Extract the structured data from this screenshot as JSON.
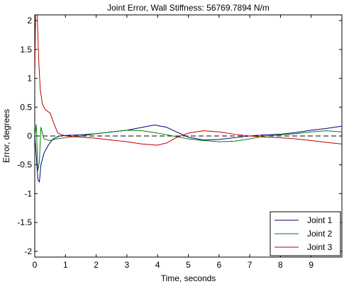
{
  "chart_data": {
    "type": "line",
    "title": "Joint Error, Wall Stiffness: 56769.7894 N/m",
    "xlabel": "Time, seconds",
    "ylabel": "Error, degrees",
    "xlim": [
      0,
      10
    ],
    "ylim": [
      -2.1,
      2.1
    ],
    "xticks": [
      0,
      1,
      2,
      3,
      4,
      5,
      6,
      7,
      8,
      9
    ],
    "xtick_labels": [
      "0",
      "1",
      "2",
      "3",
      "4",
      "5",
      "6",
      "7",
      "8",
      "9"
    ],
    "yticks": [
      2,
      1.5,
      1,
      0.5,
      0,
      -0.5,
      -1,
      -1.5,
      -2
    ],
    "ytick_labels": [
      "2",
      "1.5",
      "1",
      "0.5",
      "0",
      "-0.5",
      "-1",
      "-1.5",
      "-2"
    ],
    "grid": false,
    "legend_position": "bottom-right",
    "reference_line": {
      "y": 0,
      "style": "dashed",
      "color": "#000000"
    },
    "series": [
      {
        "name": "Joint 1",
        "color": "#00007f",
        "x": [
          0,
          0.05,
          0.1,
          0.15,
          0.2,
          0.3,
          0.45,
          0.6,
          0.8,
          1,
          1.5,
          2,
          2.5,
          3,
          3.5,
          3.9,
          4.3,
          4.7,
          5,
          5.5,
          6,
          6.5,
          7,
          7.5,
          8,
          8.5,
          9,
          9.5,
          10
        ],
        "y": [
          0,
          -0.35,
          -0.75,
          -0.8,
          -0.5,
          -0.3,
          -0.15,
          -0.05,
          0,
          0.01,
          0.02,
          0.04,
          0.07,
          0.1,
          0.15,
          0.19,
          0.15,
          0.05,
          -0.02,
          -0.07,
          -0.06,
          -0.03,
          0.0,
          0.02,
          0.03,
          0.06,
          0.1,
          0.13,
          0.17
        ]
      },
      {
        "name": "Joint 2",
        "color": "#007f00",
        "x": [
          0,
          0.05,
          0.1,
          0.15,
          0.2,
          0.3,
          0.5,
          0.7,
          1,
          1.5,
          2,
          2.5,
          3,
          3.5,
          4,
          4.5,
          5,
          5.5,
          6,
          6.5,
          7,
          7.5,
          8,
          8.5,
          9,
          9.5,
          10
        ],
        "y": [
          0,
          0.2,
          -0.6,
          -0.45,
          0.15,
          -0.05,
          -0.08,
          -0.05,
          -0.03,
          0.0,
          0.04,
          0.07,
          0.1,
          0.09,
          0.05,
          0.0,
          -0.05,
          -0.08,
          -0.1,
          -0.09,
          -0.05,
          0.0,
          0.02,
          0.04,
          0.07,
          0.09,
          0.07
        ]
      },
      {
        "name": "Joint 3",
        "color": "#bf0000",
        "x": [
          0,
          0.03,
          0.07,
          0.1,
          0.13,
          0.18,
          0.25,
          0.35,
          0.5,
          0.6,
          0.75,
          1,
          1.5,
          2,
          2.5,
          3,
          3.5,
          4,
          4.3,
          4.6,
          5,
          5.5,
          6,
          6.5,
          7,
          7.5,
          8,
          8.5,
          9,
          9.5,
          10
        ],
        "y": [
          1.0,
          2.2,
          2.3,
          1.8,
          1.3,
          0.8,
          0.55,
          0.45,
          0.4,
          0.25,
          0.05,
          0.0,
          -0.02,
          -0.04,
          -0.07,
          -0.1,
          -0.14,
          -0.16,
          -0.12,
          -0.03,
          0.05,
          0.09,
          0.07,
          0.03,
          0.0,
          -0.02,
          -0.03,
          -0.05,
          -0.08,
          -0.11,
          -0.14
        ]
      }
    ]
  }
}
